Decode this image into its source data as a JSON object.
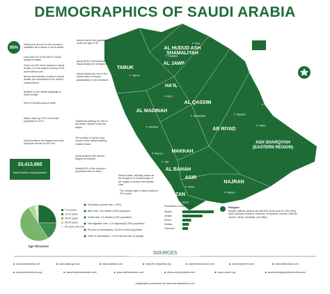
{
  "header": {
    "title": "DEMOGRAPHICS OF SAUDI ARABIA"
  },
  "left_facts": [
    {
      "highlight": "95%",
      "text": "Ninety-five percent of the country is classified as a desert or semi-desert"
    },
    {
      "highlight": "",
      "text": "Less than 2% of the land in Saudi Arabia is arable"
    },
    {
      "highlight": "",
      "text": "There are NO rivers located in Saudi Arabia. It is the largest country in the world without one"
    },
    {
      "highlight": "",
      "text": "Mecca and Medina, located in Saudi Arabia, are considered to be Islam's holiest places"
    },
    {
      "highlight": "",
      "text": "ARABIC is the official language of Saudi Arabia"
    },
    {
      "highlight": "",
      "text": "95% of Saudis practice Islam"
    },
    {
      "highlight": "",
      "text": "Males make up 57% of the total population in 2017"
    },
    {
      "highlight": "",
      "text": "Saudi Arabia is the largest and most populous country in the Gulf"
    }
  ],
  "middle_facts": [
    "Almost half of the population is under the age of 25.",
    "About 80% of the laborers in Saudi Arabia are foreigners",
    "Saudi Arabia has one of the lowest rates of female participation in the workforce",
    "Traditional clothing for men is the thobe. Women wear the abaya",
    "The country is home to the world's future tallest building, Jeddah Tower",
    "Saudi Arabia is the world's largest oil exporter",
    "Nearly 60% of the country's population lives in cities"
  ],
  "map": {
    "regions": [
      "AL HUDUD ASH SHAMALIYAH",
      "AL JAWF",
      "TABUK",
      "HA'IL",
      "AL QASSIM",
      "AL MADINAH",
      "AR RIYAD",
      "MAKKAH",
      "ASH SHARQIYAH (EASTERN REGION)",
      "AL BAHAH",
      "ASIR",
      "JIZAN",
      "NAJRAN"
    ],
    "cities": [
      "Arar",
      "Sakaka",
      "Tabuk",
      "Ha'il",
      "Buraydah",
      "Medina",
      "Riyadh",
      "Dammam",
      "Hofuf",
      "Jeddah",
      "Mecca",
      "Taif",
      "Abha",
      "Jizan",
      "Najran"
    ]
  },
  "side_notes": [
    "Saudi Arabia, officially known as the Kingdom of Saudi Arabia, is the largest country in the Middle East",
    "The median age in Saudi Arabia is 30.2 years"
  ],
  "population": {
    "number": "33,413,660",
    "text": "Saudi Arabia's total population"
  },
  "age_chart": {
    "type": "pie",
    "title": "Age Structure",
    "categories": [
      "0-14 years",
      "15-24 years",
      "25-54 years",
      "55-64 years",
      "65 years and over"
    ],
    "values": [
      25,
      16,
      50,
      6,
      3
    ],
    "colors": [
      "#1e6b36",
      "#3d8b4f",
      "#7ab66a",
      "#b5d69a",
      "#e0edd2"
    ]
  },
  "stats": [
    "Population growth rate: 1.49%",
    "Birth rate: 18.4 births/1,000 population",
    "Death rate: 3.3 deaths/1,000 population",
    "Net migration rate: -0.9 migrant(s)/1,000 population",
    "Percent of urbanization: 83.8% of total population",
    "Rate of urbanization: 1.51% annual rate of change"
  ],
  "cities_chart": {
    "type": "bar",
    "title": "Population in Major Cities",
    "categories": [
      "Riyadh",
      "Jeddah",
      "Mecca",
      "Medina",
      "Dammam"
    ],
    "values": [
      7.2,
      4.6,
      2.0,
      1.5,
      1.3
    ],
    "color": "#1e6b36"
  },
  "religion": {
    "title": "Religion",
    "text": "Muslim (official; citizens are 85-90% Sunni and 10-15% Shia), other (includes Eastern Orthodox, Protestant, Roman Catholic, Jewish, Hindu, Buddhist, and Sikh)"
  },
  "sources": {
    "title": "SOURCES",
    "links": [
      "www.nationfacts.net",
      "www.stats.gov.sa",
      "www.statista.com",
      "www.en.wikipedia.org",
      "www.indexmundi.com",
      "www.stepfeed.com",
      "www.britannica.com",
      "www.pewresearch.org",
      "www.businessinsider.com",
      "www.nationmaster.com",
      "www.countrymeters.info",
      "www.unicef.org",
      "www.worldpopulationreview.com"
    ],
    "footer": "Infographic produced by www.saudiarabia.co.uk"
  }
}
